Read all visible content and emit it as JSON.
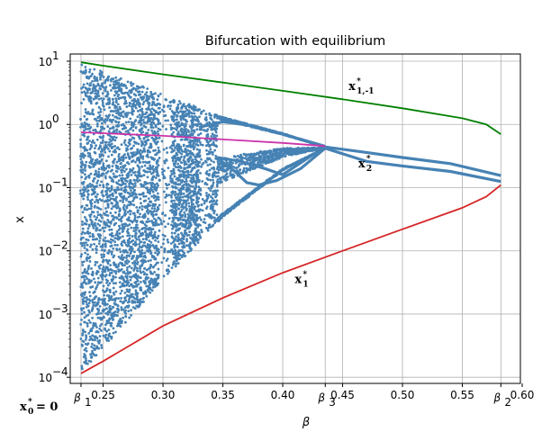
{
  "chart_data": {
    "type": "scatter",
    "title": "Bifurcation with equilibrium",
    "xlabel": "β",
    "ylabel": "x",
    "xlim": [
      0.2225,
      0.5985
    ],
    "ylim": [
      8e-05,
      13
    ],
    "yscale": "log",
    "grid": true,
    "x_ticks": [
      {
        "value": 0.25,
        "label": "0.25"
      },
      {
        "value": 0.3,
        "label": "0.30"
      },
      {
        "value": 0.35,
        "label": "0.35"
      },
      {
        "value": 0.4,
        "label": "0.40"
      },
      {
        "value": 0.45,
        "label": "0.45"
      },
      {
        "value": 0.5,
        "label": "0.50"
      },
      {
        "value": 0.55,
        "label": "0.55"
      },
      {
        "value": 0.6,
        "label": "0.60"
      }
    ],
    "special_x_ticks": [
      {
        "value": 0.2315,
        "label": "β",
        "sub": "1"
      },
      {
        "value": 0.4355,
        "label": "β",
        "sub": "3"
      },
      {
        "value": 0.5822,
        "label": "β",
        "sub": "2"
      }
    ],
    "y_ticks": [
      {
        "value": 0.0001,
        "base": "10",
        "exp": "−4"
      },
      {
        "value": 0.001,
        "base": "10",
        "exp": "−3"
      },
      {
        "value": 0.01,
        "base": "10",
        "exp": "−2"
      },
      {
        "value": 0.1,
        "base": "10",
        "exp": "−1"
      },
      {
        "value": 1,
        "base": "10",
        "exp": "0"
      },
      {
        "value": 10,
        "base": "10",
        "exp": "1"
      }
    ],
    "x0_annotation": {
      "text": "x",
      "sub": "0",
      "sup": "*",
      "suffix": " = 0"
    },
    "series": [
      {
        "color": "#4682b4",
        "kind": "bifurcation-points",
        "beta_start": 0.2315,
        "beta_end": 0.5822,
        "branches": [
          {
            "beta": [
              0.2315,
              0.3,
              0.35,
              0.4,
              0.4355
            ],
            "upper": [
              9.3,
              3.0,
              1.3,
              0.72,
              0.44
            ]
          },
          {
            "beta": [
              0.2315,
              0.3,
              0.35,
              0.4,
              0.4355
            ],
            "lower": [
              0.000115,
              0.0035,
              0.035,
              0.19,
              0.42
            ]
          }
        ]
      },
      {
        "name": "",
        "color": "#008000",
        "x": [
          0.2315,
          0.25,
          0.3,
          0.35,
          0.4,
          0.45,
          0.5,
          0.55,
          0.57,
          0.5822
        ],
        "y": [
          9.6,
          8.5,
          6.2,
          4.6,
          3.4,
          2.5,
          1.8,
          1.25,
          1.0,
          0.7
        ]
      },
      {
        "name": "",
        "color": "#cc33aa",
        "x": [
          0.2315,
          0.3,
          0.35,
          0.4,
          0.4355
        ],
        "y": [
          0.75,
          0.66,
          0.58,
          0.51,
          0.455
        ]
      },
      {
        "name": "",
        "color": "#d62728",
        "x": [
          0.2315,
          0.25,
          0.3,
          0.35,
          0.4,
          0.45,
          0.5,
          0.55,
          0.57,
          0.5822
        ],
        "y": [
          0.000115,
          0.00018,
          0.00065,
          0.0018,
          0.0045,
          0.01,
          0.022,
          0.048,
          0.072,
          0.11
        ]
      }
    ],
    "annotations": [
      {
        "text": "x",
        "sub": "1,-1",
        "sup": "*",
        "at_x": 0.455,
        "at_y": 3.5
      },
      {
        "text": "x",
        "sub": "2",
        "sup": "*",
        "at_x": 0.463,
        "at_y": 0.21
      },
      {
        "text": "x",
        "sub": "1",
        "sup": "*",
        "at_x": 0.41,
        "at_y": 0.0031
      }
    ]
  }
}
